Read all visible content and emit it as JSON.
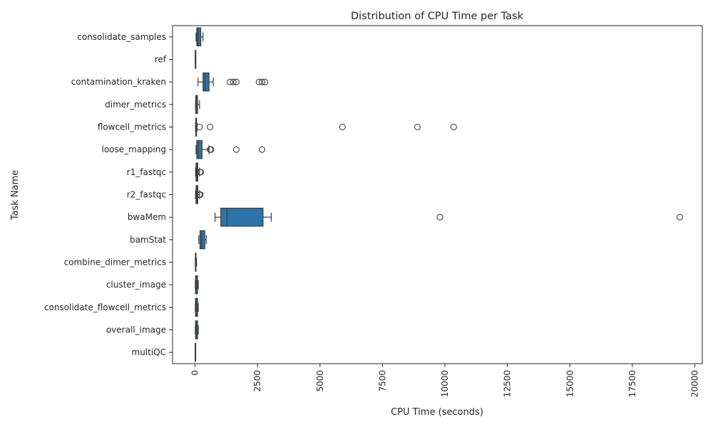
{
  "chart_data": {
    "type": "boxplot",
    "orientation": "horizontal",
    "title": "Distribution of CPU Time per Task",
    "xlabel": "CPU Time (seconds)",
    "ylabel": "Task Name",
    "xlim": [
      -900,
      20300
    ],
    "xticks": [
      0,
      2500,
      5000,
      7500,
      10000,
      12500,
      15000,
      17500,
      20000
    ],
    "xtick_labels": [
      "0",
      "2500",
      "5000",
      "7500",
      "10000",
      "12500",
      "15000",
      "17500",
      "20000"
    ],
    "grid": false,
    "box_color": "#2e73a9",
    "edge_color": "#3d3d3d",
    "categories": [
      "consolidate_samples",
      "ref",
      "contamination_kraken",
      "dimer_metrics",
      "flowcell_metrics",
      "loose_mapping",
      "r1_fastqc",
      "r2_fastqc",
      "bwaMem",
      "bamStat",
      "combine_dimer_metrics",
      "cluster_image",
      "consolidate_flowcell_metrics",
      "overall_image",
      "multiQC"
    ],
    "boxes": [
      {
        "task": "consolidate_samples",
        "whisker_low": 40,
        "q1": 70,
        "median": 120,
        "q3": 230,
        "whisker_high": 320,
        "outliers": []
      },
      {
        "task": "ref",
        "whisker_low": 10,
        "q1": 10,
        "median": 10,
        "q3": 10,
        "whisker_high": 10,
        "outliers": []
      },
      {
        "task": "contamination_kraken",
        "whisker_low": 120,
        "q1": 320,
        "median": 400,
        "q3": 560,
        "whisker_high": 730,
        "outliers": [
          1400,
          1530,
          1650,
          2560,
          2680,
          2800
        ]
      },
      {
        "task": "dimer_metrics",
        "whisker_low": 20,
        "q1": 30,
        "median": 50,
        "q3": 100,
        "whisker_high": 180,
        "outliers": []
      },
      {
        "task": "flowcell_metrics",
        "whisker_low": 20,
        "q1": 30,
        "median": 40,
        "q3": 60,
        "whisker_high": 80,
        "outliers": [
          180,
          600,
          5900,
          8900,
          10350
        ]
      },
      {
        "task": "loose_mapping",
        "whisker_low": 40,
        "q1": 70,
        "median": 130,
        "q3": 280,
        "whisker_high": 560,
        "outliers": [
          600,
          640,
          1650,
          2680
        ]
      },
      {
        "task": "r1_fastqc",
        "whisker_low": 20,
        "q1": 40,
        "median": 70,
        "q3": 110,
        "whisker_high": 180,
        "outliers": [
          200,
          230
        ]
      },
      {
        "task": "r2_fastqc",
        "whisker_low": 20,
        "q1": 40,
        "median": 70,
        "q3": 110,
        "whisker_high": 180,
        "outliers": [
          170,
          210
        ]
      },
      {
        "task": "bwaMem",
        "whisker_low": 800,
        "q1": 1030,
        "median": 1280,
        "q3": 2720,
        "whisker_high": 3050,
        "outliers": [
          9800,
          19400
        ]
      },
      {
        "task": "bamStat",
        "whisker_low": 150,
        "q1": 200,
        "median": 260,
        "q3": 390,
        "whisker_high": 450,
        "outliers": []
      },
      {
        "task": "combine_dimer_metrics",
        "whisker_low": 10,
        "q1": 15,
        "median": 25,
        "q3": 40,
        "whisker_high": 60,
        "outliers": []
      },
      {
        "task": "cluster_image",
        "whisker_low": 10,
        "q1": 20,
        "median": 50,
        "q3": 100,
        "whisker_high": 130,
        "outliers": []
      },
      {
        "task": "consolidate_flowcell_metrics",
        "whisker_low": 10,
        "q1": 20,
        "median": 50,
        "q3": 100,
        "whisker_high": 130,
        "outliers": []
      },
      {
        "task": "overall_image",
        "whisker_low": 10,
        "q1": 20,
        "median": 50,
        "q3": 100,
        "whisker_high": 130,
        "outliers": []
      },
      {
        "task": "multiQC",
        "whisker_low": 5,
        "q1": 5,
        "median": 5,
        "q3": 5,
        "whisker_high": 5,
        "outliers": []
      }
    ]
  }
}
